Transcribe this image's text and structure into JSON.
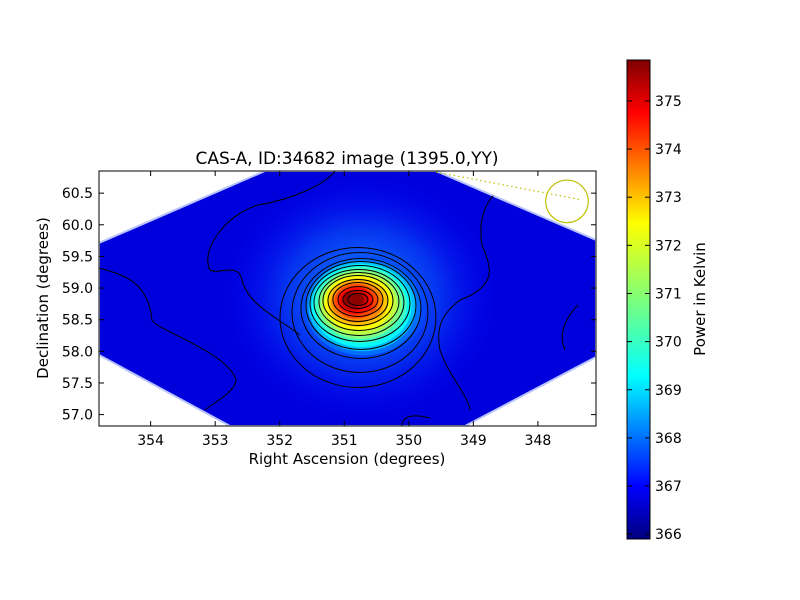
{
  "chart_data": {
    "type": "heatmap",
    "title": "CAS-A, ID:34682 image (1395.0,YY)",
    "xlabel": "Right Ascension (degrees)",
    "ylabel": "Declination (degrees)",
    "xlim": [
      354.8,
      347.1
    ],
    "ylim": [
      56.82,
      60.85
    ],
    "x_ticks": [
      {
        "value": 354,
        "label": "354"
      },
      {
        "value": 353,
        "label": "353"
      },
      {
        "value": 352,
        "label": "352"
      },
      {
        "value": 351,
        "label": "351"
      },
      {
        "value": 350,
        "label": "350"
      },
      {
        "value": 349,
        "label": "349"
      },
      {
        "value": 348,
        "label": "348"
      }
    ],
    "y_ticks": [
      {
        "value": 57.0,
        "label": "57.0"
      },
      {
        "value": 57.5,
        "label": "57.5"
      },
      {
        "value": 58.0,
        "label": "58.0"
      },
      {
        "value": 58.5,
        "label": "58.5"
      },
      {
        "value": 59.0,
        "label": "59.0"
      },
      {
        "value": 59.5,
        "label": "59.5"
      },
      {
        "value": 60.0,
        "label": "60.0"
      },
      {
        "value": 60.5,
        "label": "60.5"
      }
    ],
    "colorbar": {
      "label": "Power in Kelvin",
      "colormap": "jet",
      "range": [
        365.9,
        375.85
      ],
      "ticks": [
        {
          "value": 366,
          "label": "366"
        },
        {
          "value": 367,
          "label": "367"
        },
        {
          "value": 368,
          "label": "368"
        },
        {
          "value": 369,
          "label": "369"
        },
        {
          "value": 370,
          "label": "370"
        },
        {
          "value": 371,
          "label": "371"
        },
        {
          "value": 372,
          "label": "372"
        },
        {
          "value": 373,
          "label": "373"
        },
        {
          "value": 374,
          "label": "374"
        },
        {
          "value": 375,
          "label": "375"
        }
      ]
    },
    "source": {
      "ra": 350.85,
      "dec": 58.82,
      "peak": 375.8
    },
    "background_level": 367.0,
    "beam_circle": {
      "ra": 347.55,
      "dec": 60.37,
      "radius_deg": 0.33,
      "color": "#bfbf00"
    },
    "legend": "none",
    "grid": false
  }
}
